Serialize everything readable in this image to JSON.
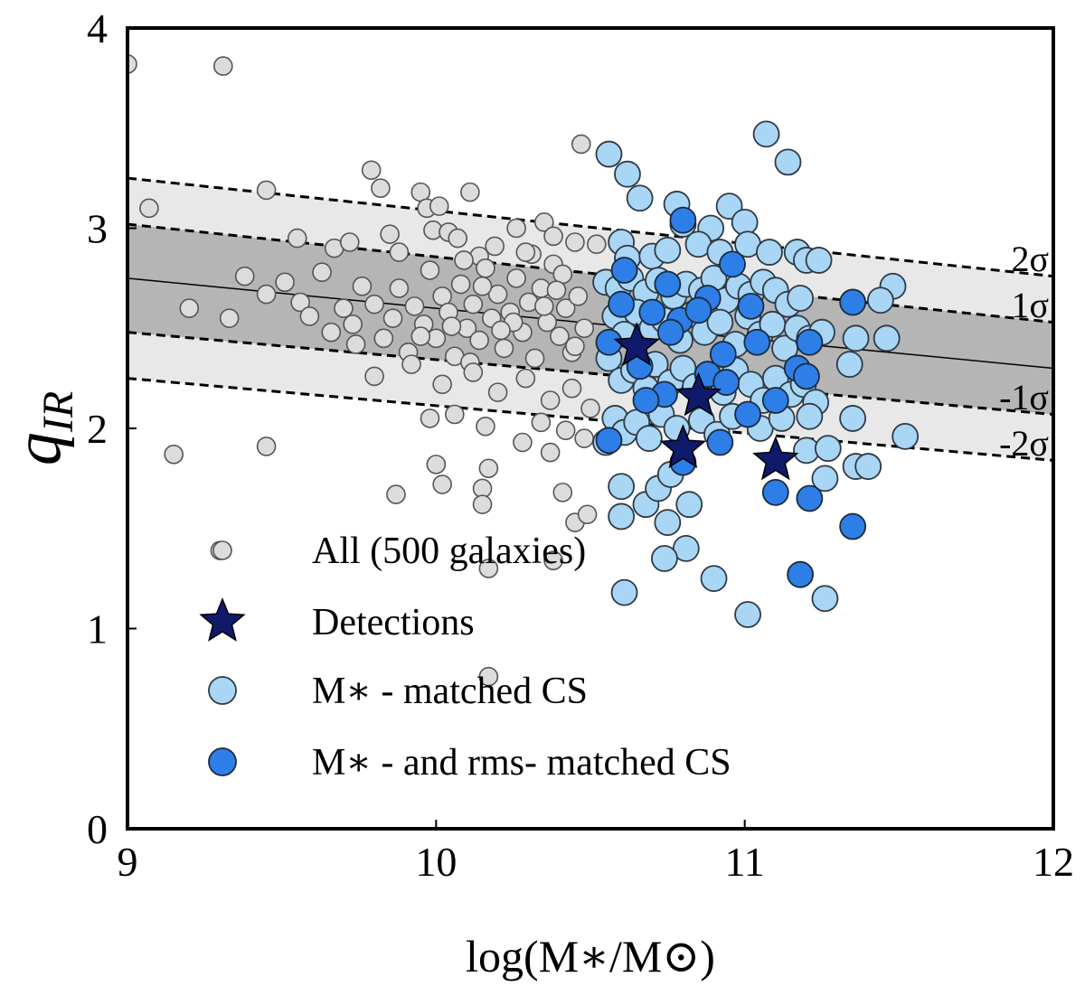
{
  "chart_data": {
    "type": "scatter",
    "xlabel": "log(M∗/M⊙)",
    "ylabel": "q",
    "ylabel_sub": "IR",
    "xlim": [
      9,
      12
    ],
    "ylim": [
      0,
      4
    ],
    "xticks": [
      "9",
      "10",
      "11",
      "12"
    ],
    "yticks": [
      "0",
      "1",
      "2",
      "3",
      "4"
    ],
    "grid": false,
    "legend_position": "lower-left",
    "relation": {
      "x": [
        9,
        12
      ],
      "center": [
        2.75,
        2.3
      ],
      "sigma1": [
        0.27,
        0.23
      ],
      "sigma2": [
        0.5,
        0.46
      ],
      "labels": [
        "2σ",
        "1σ",
        "-1σ",
        "-2σ"
      ]
    },
    "colors": {
      "all": "#dcdcdc",
      "matched": "#a9d6f5",
      "rms_matched": "#2e7ee8",
      "detections": "#0f1a6b",
      "band_inner": "#b5b5b5",
      "band_outer": "#e8e8e8"
    },
    "series": [
      {
        "name": "All (500 galaxies)",
        "marker": "circle-open",
        "points": [
          [
            9.0,
            3.82
          ],
          [
            9.31,
            3.81
          ],
          [
            9.07,
            3.1
          ],
          [
            9.45,
            3.19
          ],
          [
            9.79,
            3.29
          ],
          [
            9.82,
            3.2
          ],
          [
            9.95,
            3.18
          ],
          [
            9.97,
            3.1
          ],
          [
            10.01,
            3.11
          ],
          [
            10.11,
            3.18
          ],
          [
            10.47,
            3.42
          ],
          [
            9.55,
            2.95
          ],
          [
            9.67,
            2.9
          ],
          [
            9.72,
            2.93
          ],
          [
            9.85,
            2.97
          ],
          [
            9.88,
            2.88
          ],
          [
            9.99,
            2.99
          ],
          [
            10.04,
            2.98
          ],
          [
            10.07,
            2.95
          ],
          [
            10.14,
            2.86
          ],
          [
            10.26,
            3.0
          ],
          [
            10.35,
            3.03
          ],
          [
            10.38,
            2.96
          ],
          [
            10.45,
            2.93
          ],
          [
            10.52,
            2.92
          ],
          [
            9.2,
            2.6
          ],
          [
            9.33,
            2.55
          ],
          [
            9.38,
            2.76
          ],
          [
            9.45,
            2.67
          ],
          [
            9.51,
            2.73
          ],
          [
            9.56,
            2.63
          ],
          [
            9.59,
            2.56
          ],
          [
            9.63,
            2.78
          ],
          [
            9.66,
            2.48
          ],
          [
            9.7,
            2.6
          ],
          [
            9.73,
            2.52
          ],
          [
            9.76,
            2.71
          ],
          [
            9.8,
            2.62
          ],
          [
            9.83,
            2.45
          ],
          [
            9.86,
            2.55
          ],
          [
            9.88,
            2.7
          ],
          [
            9.91,
            2.38
          ],
          [
            9.93,
            2.61
          ],
          [
            9.96,
            2.52
          ],
          [
            9.98,
            2.79
          ],
          [
            10.0,
            2.45
          ],
          [
            10.02,
            2.66
          ],
          [
            10.04,
            2.58
          ],
          [
            10.06,
            2.36
          ],
          [
            10.08,
            2.72
          ],
          [
            10.1,
            2.5
          ],
          [
            10.12,
            2.62
          ],
          [
            10.14,
            2.44
          ],
          [
            10.16,
            2.8
          ],
          [
            10.18,
            2.55
          ],
          [
            10.2,
            2.67
          ],
          [
            10.22,
            2.4
          ],
          [
            10.24,
            2.58
          ],
          [
            10.26,
            2.75
          ],
          [
            10.28,
            2.48
          ],
          [
            10.3,
            2.63
          ],
          [
            10.32,
            2.35
          ],
          [
            10.34,
            2.7
          ],
          [
            10.36,
            2.53
          ],
          [
            10.38,
            2.82
          ],
          [
            10.4,
            2.46
          ],
          [
            10.42,
            2.6
          ],
          [
            10.44,
            2.38
          ],
          [
            10.46,
            2.66
          ],
          [
            10.48,
            2.5
          ],
          [
            10.05,
            2.51
          ],
          [
            10.15,
            2.71
          ],
          [
            10.25,
            2.53
          ],
          [
            10.35,
            2.61
          ],
          [
            10.45,
            2.41
          ],
          [
            10.11,
            2.33
          ],
          [
            10.21,
            2.49
          ],
          [
            10.31,
            2.87
          ],
          [
            10.41,
            2.77
          ],
          [
            10.19,
            2.91
          ],
          [
            10.29,
            2.88
          ],
          [
            10.39,
            2.69
          ],
          [
            10.09,
            2.84
          ],
          [
            9.95,
            2.46
          ],
          [
            9.74,
            2.42
          ],
          [
            9.8,
            2.26
          ],
          [
            9.92,
            2.32
          ],
          [
            10.02,
            2.22
          ],
          [
            10.12,
            2.28
          ],
          [
            10.2,
            2.18
          ],
          [
            10.29,
            2.25
          ],
          [
            10.37,
            2.14
          ],
          [
            10.44,
            2.2
          ],
          [
            10.5,
            2.1
          ],
          [
            9.15,
            1.87
          ],
          [
            9.45,
            1.91
          ],
          [
            9.98,
            2.05
          ],
          [
            10.06,
            2.07
          ],
          [
            10.16,
            2.01
          ],
          [
            10.34,
            2.03
          ],
          [
            10.42,
            1.99
          ],
          [
            10.48,
            1.95
          ],
          [
            10.0,
            1.82
          ],
          [
            10.17,
            1.8
          ],
          [
            10.28,
            1.93
          ],
          [
            10.37,
            1.88
          ],
          [
            10.02,
            1.72
          ],
          [
            10.15,
            1.7
          ],
          [
            10.41,
            1.68
          ],
          [
            9.87,
            1.67
          ],
          [
            10.15,
            1.62
          ],
          [
            10.45,
            1.53
          ],
          [
            10.49,
            1.57
          ],
          [
            9.3,
            1.39
          ],
          [
            10.17,
            1.3
          ],
          [
            10.38,
            1.34
          ],
          [
            10.17,
            0.76
          ]
        ]
      },
      {
        "name": "M∗ - matched CS",
        "marker": "circle-light",
        "points": [
          [
            11.07,
            3.47
          ],
          [
            11.14,
            3.33
          ],
          [
            10.56,
            3.37
          ],
          [
            10.62,
            3.27
          ],
          [
            10.66,
            3.15
          ],
          [
            10.78,
            3.12
          ],
          [
            10.95,
            3.11
          ],
          [
            10.8,
            3.02
          ],
          [
            10.89,
            3.0
          ],
          [
            11.0,
            3.03
          ],
          [
            10.6,
            2.93
          ],
          [
            10.62,
            2.85
          ],
          [
            10.7,
            2.86
          ],
          [
            10.75,
            2.89
          ],
          [
            10.85,
            2.92
          ],
          [
            10.92,
            2.88
          ],
          [
            11.01,
            2.92
          ],
          [
            11.08,
            2.88
          ],
          [
            11.17,
            2.88
          ],
          [
            11.2,
            2.84
          ],
          [
            11.24,
            2.84
          ],
          [
            10.55,
            2.73
          ],
          [
            10.59,
            2.7
          ],
          [
            10.63,
            2.75
          ],
          [
            10.68,
            2.68
          ],
          [
            10.72,
            2.74
          ],
          [
            10.77,
            2.66
          ],
          [
            10.81,
            2.72
          ],
          [
            10.86,
            2.69
          ],
          [
            10.9,
            2.75
          ],
          [
            10.94,
            2.64
          ],
          [
            10.98,
            2.71
          ],
          [
            11.02,
            2.67
          ],
          [
            11.06,
            2.73
          ],
          [
            11.1,
            2.69
          ],
          [
            11.14,
            2.62
          ],
          [
            11.18,
            2.65
          ],
          [
            11.48,
            2.71
          ],
          [
            11.44,
            2.64
          ],
          [
            10.58,
            2.56
          ],
          [
            10.61,
            2.47
          ],
          [
            10.65,
            2.58
          ],
          [
            10.7,
            2.5
          ],
          [
            10.74,
            2.54
          ],
          [
            10.79,
            2.44
          ],
          [
            10.83,
            2.57
          ],
          [
            10.87,
            2.48
          ],
          [
            10.92,
            2.53
          ],
          [
            10.97,
            2.42
          ],
          [
            11.01,
            2.56
          ],
          [
            11.05,
            2.47
          ],
          [
            11.09,
            2.52
          ],
          [
            11.13,
            2.4
          ],
          [
            11.17,
            2.5
          ],
          [
            11.21,
            2.45
          ],
          [
            11.25,
            2.48
          ],
          [
            11.36,
            2.45
          ],
          [
            11.46,
            2.45
          ],
          [
            11.34,
            2.32
          ],
          [
            10.56,
            2.35
          ],
          [
            10.6,
            2.24
          ],
          [
            10.64,
            2.29
          ],
          [
            10.68,
            2.2
          ],
          [
            10.71,
            2.32
          ],
          [
            10.76,
            2.23
          ],
          [
            10.8,
            2.3
          ],
          [
            10.84,
            2.21
          ],
          [
            10.88,
            2.27
          ],
          [
            10.93,
            2.18
          ],
          [
            10.97,
            2.29
          ],
          [
            11.02,
            2.22
          ],
          [
            11.06,
            2.14
          ],
          [
            11.1,
            2.25
          ],
          [
            11.15,
            2.17
          ],
          [
            11.19,
            2.22
          ],
          [
            11.23,
            2.13
          ],
          [
            10.58,
            2.05
          ],
          [
            10.61,
            1.98
          ],
          [
            10.65,
            2.03
          ],
          [
            10.69,
            1.95
          ],
          [
            10.73,
            2.07
          ],
          [
            10.78,
            2.0
          ],
          [
            10.86,
            2.04
          ],
          [
            10.91,
            1.97
          ],
          [
            10.96,
            2.06
          ],
          [
            11.05,
            2.0
          ],
          [
            11.12,
            2.05
          ],
          [
            11.21,
            2.06
          ],
          [
            11.35,
            2.05
          ],
          [
            11.2,
            1.89
          ],
          [
            11.27,
            1.9
          ],
          [
            11.36,
            1.81
          ],
          [
            11.4,
            1.81
          ],
          [
            11.52,
            1.96
          ],
          [
            11.26,
            1.75
          ],
          [
            10.55,
            1.93
          ],
          [
            10.6,
            1.71
          ],
          [
            10.68,
            1.62
          ],
          [
            10.72,
            1.7
          ],
          [
            10.76,
            1.77
          ],
          [
            10.82,
            1.62
          ],
          [
            10.6,
            1.56
          ],
          [
            10.75,
            1.53
          ],
          [
            10.81,
            1.4
          ],
          [
            10.74,
            1.35
          ],
          [
            10.9,
            1.25
          ],
          [
            10.61,
            1.18
          ],
          [
            11.26,
            1.15
          ],
          [
            11.01,
            1.07
          ]
        ]
      },
      {
        "name": "M∗ - and rms- matched CS",
        "marker": "circle-dark",
        "points": [
          [
            10.8,
            3.04
          ],
          [
            10.61,
            2.79
          ],
          [
            10.75,
            2.72
          ],
          [
            10.96,
            2.82
          ],
          [
            10.88,
            2.65
          ],
          [
            10.6,
            2.62
          ],
          [
            10.7,
            2.58
          ],
          [
            10.79,
            2.54
          ],
          [
            10.85,
            2.59
          ],
          [
            11.02,
            2.61
          ],
          [
            11.35,
            2.63
          ],
          [
            10.56,
            2.43
          ],
          [
            10.66,
            2.31
          ],
          [
            10.76,
            2.48
          ],
          [
            10.93,
            2.37
          ],
          [
            11.04,
            2.43
          ],
          [
            11.21,
            2.43
          ],
          [
            11.17,
            2.3
          ],
          [
            11.2,
            2.26
          ],
          [
            10.88,
            2.27
          ],
          [
            10.74,
            2.17
          ],
          [
            10.94,
            2.23
          ],
          [
            11.01,
            2.07
          ],
          [
            11.1,
            2.14
          ],
          [
            10.68,
            2.14
          ],
          [
            10.56,
            1.94
          ],
          [
            10.92,
            1.93
          ],
          [
            10.8,
            1.83
          ],
          [
            11.1,
            1.68
          ],
          [
            11.21,
            1.65
          ],
          [
            11.35,
            1.51
          ],
          [
            11.18,
            1.27
          ]
        ]
      },
      {
        "name": "Detections",
        "marker": "star",
        "points": [
          [
            10.65,
            2.41
          ],
          [
            10.85,
            2.16
          ],
          [
            10.8,
            1.9
          ],
          [
            11.1,
            1.84
          ]
        ]
      }
    ]
  }
}
